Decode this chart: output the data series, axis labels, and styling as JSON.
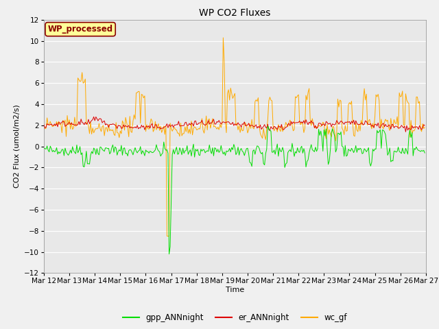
{
  "title": "WP CO2 Fluxes",
  "xlabel": "Time",
  "ylabel": "CO2 Flux (umol/m2/s)",
  "ylim": [
    -12,
    12
  ],
  "xlim": [
    0,
    360
  ],
  "bg_color": "#e8e8e8",
  "fig_color": "#f0f0f0",
  "annotation_text": "WP_processed",
  "annotation_bg": "#ffff99",
  "annotation_border": "#8b0000",
  "xtick_labels": [
    "Mar 12",
    "Mar 13",
    "Mar 14",
    "Mar 15",
    "Mar 16",
    "Mar 17",
    "Mar 18",
    "Mar 19",
    "Mar 20",
    "Mar 21",
    "Mar 22",
    "Mar 23",
    "Mar 24",
    "Mar 25",
    "Mar 26",
    "Mar 27"
  ],
  "xtick_positions": [
    0,
    24,
    48,
    72,
    96,
    120,
    144,
    168,
    192,
    216,
    240,
    264,
    288,
    312,
    336,
    360
  ],
  "ytick_positions": [
    -12,
    -10,
    -8,
    -6,
    -4,
    -2,
    0,
    2,
    4,
    6,
    8,
    10,
    12
  ],
  "gpp_color": "#00dd00",
  "er_color": "#dd0000",
  "wc_color": "#ffaa00",
  "gpp_label": "gpp_ANNnight",
  "er_label": "er_ANNnight",
  "wc_label": "wc_gf",
  "n_points": 360,
  "seed": 42
}
